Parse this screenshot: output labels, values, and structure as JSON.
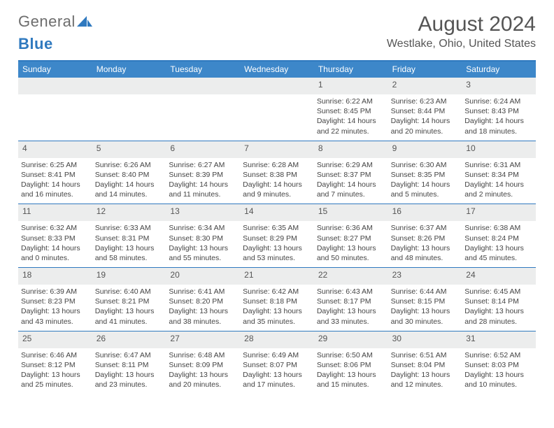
{
  "logo": {
    "general": "General",
    "blue": "Blue"
  },
  "title": {
    "month": "August 2024",
    "location": "Westlake, Ohio, United States"
  },
  "colors": {
    "header_bg": "#3d87c9",
    "header_border": "#2f79bf",
    "cell_head_bg": "#eceded",
    "text_muted": "#555555"
  },
  "day_labels": [
    "Sunday",
    "Monday",
    "Tuesday",
    "Wednesday",
    "Thursday",
    "Friday",
    "Saturday"
  ],
  "weeks": [
    [
      {
        "n": "",
        "lines": [
          "",
          "",
          "",
          ""
        ]
      },
      {
        "n": "",
        "lines": [
          "",
          "",
          "",
          ""
        ]
      },
      {
        "n": "",
        "lines": [
          "",
          "",
          "",
          ""
        ]
      },
      {
        "n": "",
        "lines": [
          "",
          "",
          "",
          ""
        ]
      },
      {
        "n": "1",
        "lines": [
          "Sunrise: 6:22 AM",
          "Sunset: 8:45 PM",
          "Daylight: 14 hours",
          "and 22 minutes."
        ]
      },
      {
        "n": "2",
        "lines": [
          "Sunrise: 6:23 AM",
          "Sunset: 8:44 PM",
          "Daylight: 14 hours",
          "and 20 minutes."
        ]
      },
      {
        "n": "3",
        "lines": [
          "Sunrise: 6:24 AM",
          "Sunset: 8:43 PM",
          "Daylight: 14 hours",
          "and 18 minutes."
        ]
      }
    ],
    [
      {
        "n": "4",
        "lines": [
          "Sunrise: 6:25 AM",
          "Sunset: 8:41 PM",
          "Daylight: 14 hours",
          "and 16 minutes."
        ]
      },
      {
        "n": "5",
        "lines": [
          "Sunrise: 6:26 AM",
          "Sunset: 8:40 PM",
          "Daylight: 14 hours",
          "and 14 minutes."
        ]
      },
      {
        "n": "6",
        "lines": [
          "Sunrise: 6:27 AM",
          "Sunset: 8:39 PM",
          "Daylight: 14 hours",
          "and 11 minutes."
        ]
      },
      {
        "n": "7",
        "lines": [
          "Sunrise: 6:28 AM",
          "Sunset: 8:38 PM",
          "Daylight: 14 hours",
          "and 9 minutes."
        ]
      },
      {
        "n": "8",
        "lines": [
          "Sunrise: 6:29 AM",
          "Sunset: 8:37 PM",
          "Daylight: 14 hours",
          "and 7 minutes."
        ]
      },
      {
        "n": "9",
        "lines": [
          "Sunrise: 6:30 AM",
          "Sunset: 8:35 PM",
          "Daylight: 14 hours",
          "and 5 minutes."
        ]
      },
      {
        "n": "10",
        "lines": [
          "Sunrise: 6:31 AM",
          "Sunset: 8:34 PM",
          "Daylight: 14 hours",
          "and 2 minutes."
        ]
      }
    ],
    [
      {
        "n": "11",
        "lines": [
          "Sunrise: 6:32 AM",
          "Sunset: 8:33 PM",
          "Daylight: 14 hours",
          "and 0 minutes."
        ]
      },
      {
        "n": "12",
        "lines": [
          "Sunrise: 6:33 AM",
          "Sunset: 8:31 PM",
          "Daylight: 13 hours",
          "and 58 minutes."
        ]
      },
      {
        "n": "13",
        "lines": [
          "Sunrise: 6:34 AM",
          "Sunset: 8:30 PM",
          "Daylight: 13 hours",
          "and 55 minutes."
        ]
      },
      {
        "n": "14",
        "lines": [
          "Sunrise: 6:35 AM",
          "Sunset: 8:29 PM",
          "Daylight: 13 hours",
          "and 53 minutes."
        ]
      },
      {
        "n": "15",
        "lines": [
          "Sunrise: 6:36 AM",
          "Sunset: 8:27 PM",
          "Daylight: 13 hours",
          "and 50 minutes."
        ]
      },
      {
        "n": "16",
        "lines": [
          "Sunrise: 6:37 AM",
          "Sunset: 8:26 PM",
          "Daylight: 13 hours",
          "and 48 minutes."
        ]
      },
      {
        "n": "17",
        "lines": [
          "Sunrise: 6:38 AM",
          "Sunset: 8:24 PM",
          "Daylight: 13 hours",
          "and 45 minutes."
        ]
      }
    ],
    [
      {
        "n": "18",
        "lines": [
          "Sunrise: 6:39 AM",
          "Sunset: 8:23 PM",
          "Daylight: 13 hours",
          "and 43 minutes."
        ]
      },
      {
        "n": "19",
        "lines": [
          "Sunrise: 6:40 AM",
          "Sunset: 8:21 PM",
          "Daylight: 13 hours",
          "and 41 minutes."
        ]
      },
      {
        "n": "20",
        "lines": [
          "Sunrise: 6:41 AM",
          "Sunset: 8:20 PM",
          "Daylight: 13 hours",
          "and 38 minutes."
        ]
      },
      {
        "n": "21",
        "lines": [
          "Sunrise: 6:42 AM",
          "Sunset: 8:18 PM",
          "Daylight: 13 hours",
          "and 35 minutes."
        ]
      },
      {
        "n": "22",
        "lines": [
          "Sunrise: 6:43 AM",
          "Sunset: 8:17 PM",
          "Daylight: 13 hours",
          "and 33 minutes."
        ]
      },
      {
        "n": "23",
        "lines": [
          "Sunrise: 6:44 AM",
          "Sunset: 8:15 PM",
          "Daylight: 13 hours",
          "and 30 minutes."
        ]
      },
      {
        "n": "24",
        "lines": [
          "Sunrise: 6:45 AM",
          "Sunset: 8:14 PM",
          "Daylight: 13 hours",
          "and 28 minutes."
        ]
      }
    ],
    [
      {
        "n": "25",
        "lines": [
          "Sunrise: 6:46 AM",
          "Sunset: 8:12 PM",
          "Daylight: 13 hours",
          "and 25 minutes."
        ]
      },
      {
        "n": "26",
        "lines": [
          "Sunrise: 6:47 AM",
          "Sunset: 8:11 PM",
          "Daylight: 13 hours",
          "and 23 minutes."
        ]
      },
      {
        "n": "27",
        "lines": [
          "Sunrise: 6:48 AM",
          "Sunset: 8:09 PM",
          "Daylight: 13 hours",
          "and 20 minutes."
        ]
      },
      {
        "n": "28",
        "lines": [
          "Sunrise: 6:49 AM",
          "Sunset: 8:07 PM",
          "Daylight: 13 hours",
          "and 17 minutes."
        ]
      },
      {
        "n": "29",
        "lines": [
          "Sunrise: 6:50 AM",
          "Sunset: 8:06 PM",
          "Daylight: 13 hours",
          "and 15 minutes."
        ]
      },
      {
        "n": "30",
        "lines": [
          "Sunrise: 6:51 AM",
          "Sunset: 8:04 PM",
          "Daylight: 13 hours",
          "and 12 minutes."
        ]
      },
      {
        "n": "31",
        "lines": [
          "Sunrise: 6:52 AM",
          "Sunset: 8:03 PM",
          "Daylight: 13 hours",
          "and 10 minutes."
        ]
      }
    ]
  ]
}
